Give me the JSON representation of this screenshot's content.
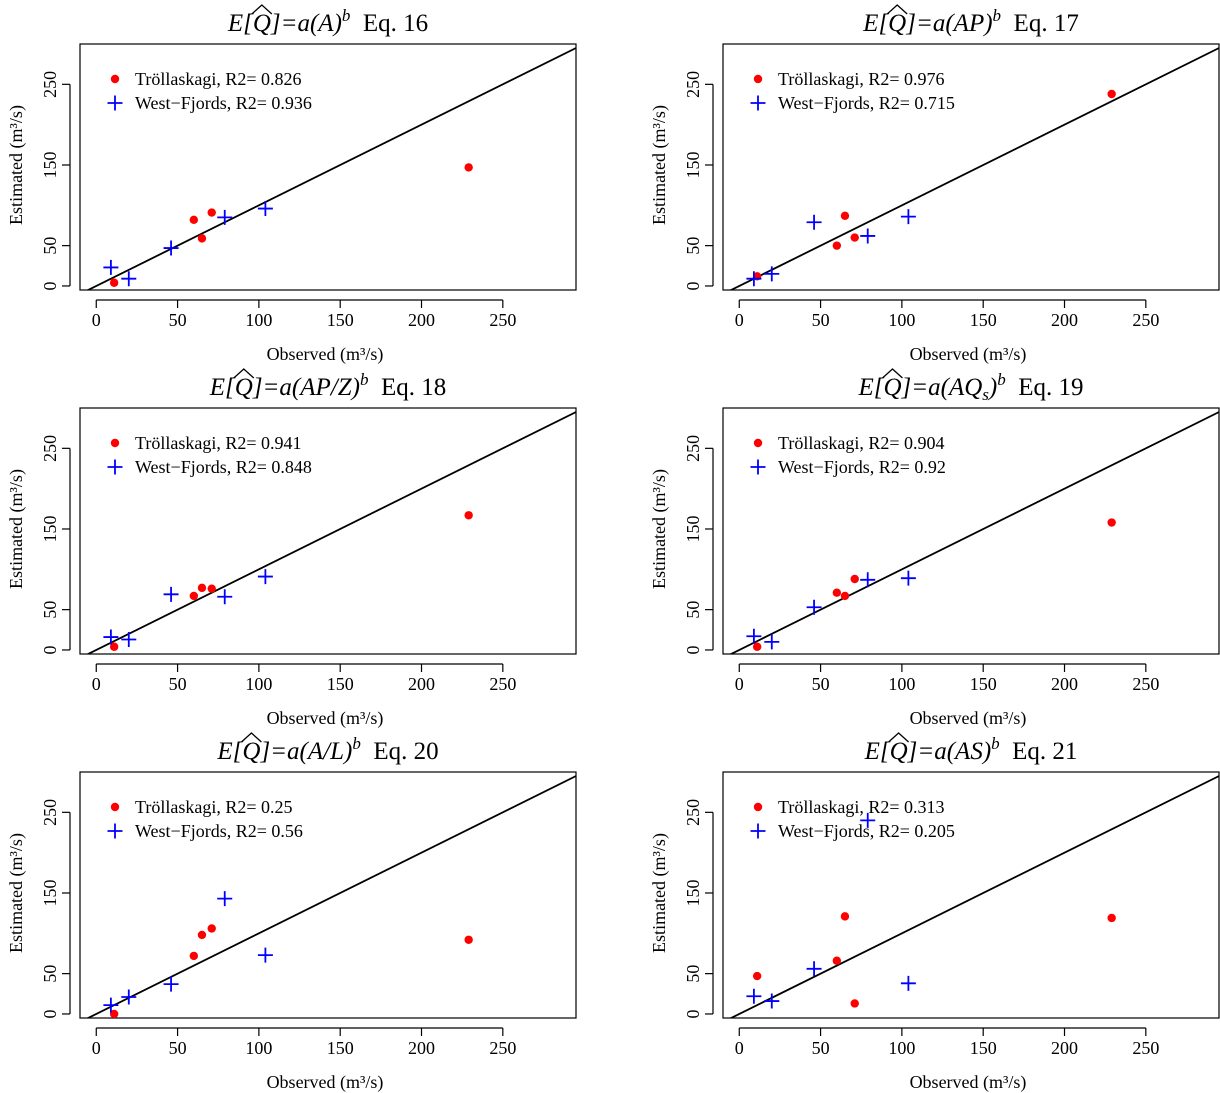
{
  "colors": {
    "trollaskagi": "#ff0000",
    "west_fjords": "#0000ff",
    "axis": "#000000"
  },
  "chart_data": [
    {
      "type": "scatter",
      "title": {
        "prefix": "E[",
        "q": "Q",
        "mid": "]=a",
        "expr": "(A)",
        "sup": "b",
        "eq": "Eq. 16"
      },
      "xlabel": "Observed (m³/s)",
      "ylabel": "Estimated (m³/s)",
      "xlim": [
        -10,
        295
      ],
      "ylim": [
        -5,
        300
      ],
      "xticks": [
        0,
        50,
        100,
        150,
        200,
        250
      ],
      "yticks": [
        0,
        50,
        150,
        250
      ],
      "reference_line": "y = x",
      "grid": false,
      "legend_position": "top-left",
      "series": [
        {
          "name": "Tröllaskagi",
          "r2_label": "R2= 0.826",
          "marker": "dot",
          "x": [
            11,
            60,
            65,
            71,
            229
          ],
          "y": [
            4,
            82,
            59,
            91,
            147
          ]
        },
        {
          "name": "West−Fjords",
          "r2_label": "R2= 0.936",
          "marker": "plus",
          "x": [
            9,
            20,
            46,
            79,
            104
          ],
          "y": [
            23,
            9,
            47,
            85,
            96
          ]
        }
      ]
    },
    {
      "type": "scatter",
      "title": {
        "prefix": "E[",
        "q": "Q",
        "mid": "]=a",
        "expr": "(AP)",
        "sup": "b",
        "eq": "Eq. 17"
      },
      "xlabel": "Observed (m³/s)",
      "ylabel": "Estimated (m³/s)",
      "xlim": [
        -10,
        295
      ],
      "ylim": [
        -5,
        300
      ],
      "xticks": [
        0,
        50,
        100,
        150,
        200,
        250
      ],
      "yticks": [
        0,
        50,
        150,
        250
      ],
      "reference_line": "y = x",
      "grid": false,
      "legend_position": "top-left",
      "series": [
        {
          "name": "Tröllaskagi",
          "r2_label": "R2= 0.976",
          "marker": "dot",
          "x": [
            11,
            60,
            65,
            71,
            229
          ],
          "y": [
            12,
            50,
            87,
            60,
            238
          ]
        },
        {
          "name": "West−Fjords",
          "r2_label": "R2= 0.715",
          "marker": "plus",
          "x": [
            9,
            20,
            46,
            79,
            104
          ],
          "y": [
            9,
            15,
            79,
            62,
            86
          ]
        }
      ]
    },
    {
      "type": "scatter",
      "title": {
        "prefix": "E[",
        "q": "Q",
        "mid": "]=a",
        "expr": "(AP/Z)",
        "sup": "b",
        "eq": "Eq. 18"
      },
      "xlabel": "Observed (m³/s)",
      "ylabel": "Estimated (m³/s)",
      "xlim": [
        -10,
        295
      ],
      "ylim": [
        -5,
        300
      ],
      "xticks": [
        0,
        50,
        100,
        150,
        200,
        250
      ],
      "yticks": [
        0,
        50,
        150,
        250
      ],
      "reference_line": "y = x",
      "grid": false,
      "legend_position": "top-left",
      "series": [
        {
          "name": "Tröllaskagi",
          "r2_label": "R2= 0.941",
          "marker": "dot",
          "x": [
            11,
            60,
            65,
            71,
            229
          ],
          "y": [
            4,
            67,
            77,
            76,
            167
          ]
        },
        {
          "name": "West−Fjords",
          "r2_label": "R2= 0.848",
          "marker": "plus",
          "x": [
            9,
            20,
            46,
            79,
            104
          ],
          "y": [
            16,
            13,
            69,
            66,
            91
          ]
        }
      ]
    },
    {
      "type": "scatter",
      "title": {
        "prefix": "E[",
        "q": "Q",
        "mid": "]=a",
        "expr": "(AQ",
        "sub": "s",
        "close": ")",
        "sup": "b",
        "eq": "Eq. 19"
      },
      "xlabel": "Observed (m³/s)",
      "ylabel": "Estimated (m³/s)",
      "xlim": [
        -10,
        295
      ],
      "ylim": [
        -5,
        300
      ],
      "xticks": [
        0,
        50,
        100,
        150,
        200,
        250
      ],
      "yticks": [
        0,
        50,
        150,
        250
      ],
      "reference_line": "y = x",
      "grid": false,
      "legend_position": "top-left",
      "series": [
        {
          "name": "Tröllaskagi",
          "r2_label": "R2= 0.904",
          "marker": "dot",
          "x": [
            11,
            60,
            65,
            71,
            229
          ],
          "y": [
            4,
            71,
            67,
            88,
            158
          ]
        },
        {
          "name": "West−Fjords",
          "r2_label": "R2= 0.92",
          "marker": "plus",
          "x": [
            9,
            20,
            46,
            79,
            104
          ],
          "y": [
            17,
            10,
            53,
            87,
            89
          ]
        }
      ]
    },
    {
      "type": "scatter",
      "title": {
        "prefix": "E[",
        "q": "Q",
        "mid": "]=a",
        "expr": "(A/L)",
        "sup": "b",
        "eq": "Eq. 20"
      },
      "xlabel": "Observed (m³/s)",
      "ylabel": "Estimated (m³/s)",
      "xlim": [
        -10,
        295
      ],
      "ylim": [
        -5,
        300
      ],
      "xticks": [
        0,
        50,
        100,
        150,
        200,
        250
      ],
      "yticks": [
        0,
        50,
        150,
        250
      ],
      "reference_line": "y = x",
      "grid": false,
      "legend_position": "top-left",
      "series": [
        {
          "name": "Tröllaskagi",
          "r2_label": "R2= 0.25",
          "marker": "dot",
          "x": [
            11,
            60,
            65,
            71,
            229
          ],
          "y": [
            0,
            72,
            98,
            106,
            92
          ]
        },
        {
          "name": "West−Fjords",
          "r2_label": "R2= 0.56",
          "marker": "plus",
          "x": [
            9,
            20,
            46,
            79,
            104
          ],
          "y": [
            11,
            21,
            37,
            143,
            73
          ]
        }
      ]
    },
    {
      "type": "scatter",
      "title": {
        "prefix": "E[",
        "q": "Q",
        "mid": "]=a",
        "expr": "(AS)",
        "sup": "b",
        "eq": "Eq. 21"
      },
      "xlabel": "Observed (m³/s)",
      "ylabel": "Estimated (m³/s)",
      "xlim": [
        -10,
        295
      ],
      "ylim": [
        -5,
        300
      ],
      "xticks": [
        0,
        50,
        100,
        150,
        200,
        250
      ],
      "yticks": [
        0,
        50,
        150,
        250
      ],
      "reference_line": "y = x",
      "grid": false,
      "legend_position": "top-left",
      "series": [
        {
          "name": "Tröllaskagi",
          "r2_label": "R2= 0.313",
          "marker": "dot",
          "x": [
            11,
            60,
            65,
            71,
            229
          ],
          "y": [
            47,
            66,
            121,
            13,
            119
          ]
        },
        {
          "name": "West−Fjords",
          "r2_label": "R2= 0.205",
          "marker": "plus",
          "x": [
            9,
            20,
            46,
            79,
            104
          ],
          "y": [
            22,
            16,
            56,
            240,
            38
          ]
        }
      ]
    }
  ]
}
